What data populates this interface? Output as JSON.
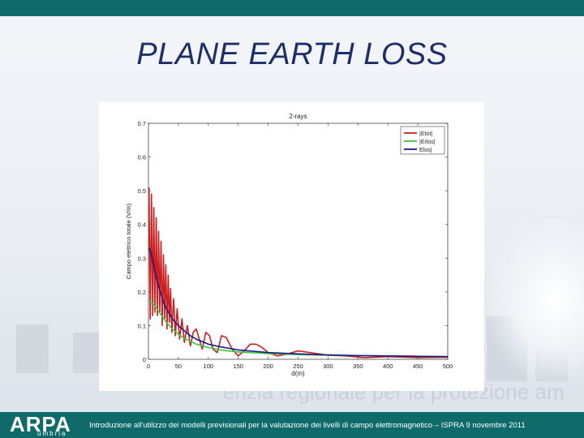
{
  "slide": {
    "title": "PLANE EARTH LOSS",
    "footer": "Introduzione all'utilizzo dei modelli previsionali per la valutazione dei livelli di campo elettromagnetico – ISPRA 9 novembre 2011",
    "logo_main": "ARPA",
    "logo_sub": "umbria",
    "background_text": "enzia regionale per la protezione am",
    "colors": {
      "bar": "#0f6b6a",
      "title": "#1d2f66"
    }
  },
  "chart_data": {
    "type": "line",
    "title": "2-rays",
    "xlabel": "d(m)",
    "ylabel": "Campo elettrico totale (V/m)",
    "xlim": [
      0,
      500
    ],
    "ylim": [
      0,
      0.7
    ],
    "xticks": [
      0,
      50,
      100,
      150,
      200,
      250,
      300,
      350,
      400,
      450,
      500
    ],
    "yticks": [
      0,
      0.1,
      0.2,
      0.3,
      0.4,
      0.5,
      0.6,
      0.7
    ],
    "legend_position": "top-right",
    "grid": false,
    "series": [
      {
        "name": "|Etot|",
        "color": "#cc1f1f",
        "x": [
          1,
          3,
          5,
          7,
          9,
          11,
          13,
          15,
          17,
          19,
          21,
          23,
          25,
          27,
          29,
          31,
          33,
          35,
          37,
          39,
          42,
          45,
          48,
          52,
          56,
          60,
          65,
          70,
          75,
          80,
          85,
          90,
          96,
          102,
          108,
          115,
          122,
          130,
          140,
          150,
          160,
          170,
          180,
          190,
          200,
          215,
          230,
          250,
          270,
          300,
          330,
          360,
          400,
          450,
          500
        ],
        "y": [
          0.51,
          0.12,
          0.49,
          0.13,
          0.45,
          0.14,
          0.42,
          0.13,
          0.38,
          0.14,
          0.35,
          0.1,
          0.31,
          0.12,
          0.28,
          0.09,
          0.25,
          0.11,
          0.21,
          0.08,
          0.18,
          0.07,
          0.15,
          0.06,
          0.12,
          0.05,
          0.1,
          0.04,
          0.08,
          0.09,
          0.06,
          0.03,
          0.08,
          0.07,
          0.03,
          0.02,
          0.07,
          0.065,
          0.03,
          0.01,
          0.025,
          0.045,
          0.045,
          0.035,
          0.02,
          0.01,
          0.015,
          0.025,
          0.02,
          0.012,
          0.01,
          0.005,
          0.008,
          0.005,
          0.006
        ]
      },
      {
        "name": "|Erlos|",
        "color": "#3cc83c",
        "x": [
          1,
          10,
          20,
          30,
          40,
          50,
          60,
          80,
          100,
          120,
          150,
          200,
          250,
          300,
          350,
          400,
          450,
          500
        ],
        "y": [
          0.175,
          0.16,
          0.135,
          0.11,
          0.09,
          0.075,
          0.062,
          0.045,
          0.035,
          0.028,
          0.022,
          0.017,
          0.014,
          0.012,
          0.011,
          0.01,
          0.009,
          0.008
        ]
      },
      {
        "name": "Elos|",
        "color": "#1a1a8c",
        "x": [
          1,
          5,
          10,
          15,
          20,
          25,
          30,
          40,
          50,
          60,
          70,
          80,
          100,
          120,
          150,
          200,
          250,
          300,
          350,
          400,
          450,
          500
        ],
        "y": [
          0.33,
          0.31,
          0.27,
          0.23,
          0.2,
          0.17,
          0.15,
          0.12,
          0.1,
          0.085,
          0.07,
          0.06,
          0.045,
          0.037,
          0.028,
          0.02,
          0.016,
          0.013,
          0.011,
          0.01,
          0.009,
          0.008
        ]
      }
    ]
  }
}
